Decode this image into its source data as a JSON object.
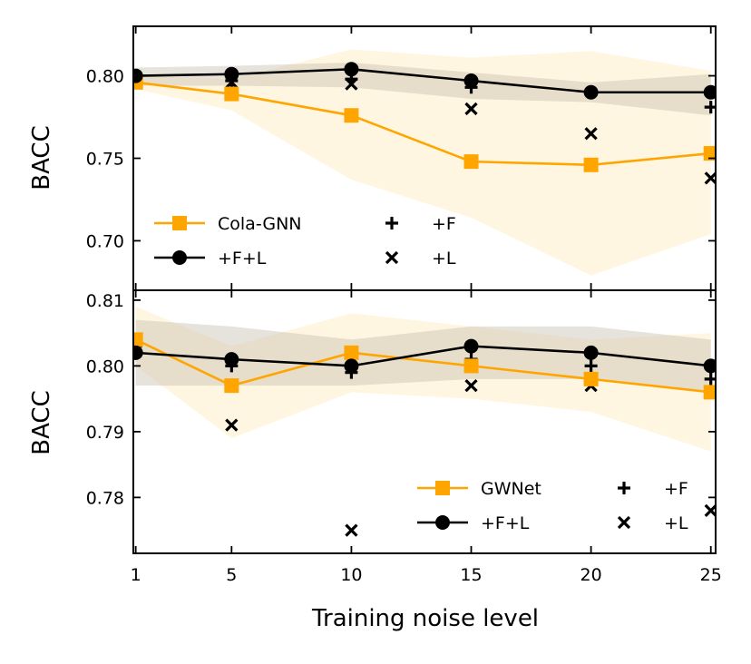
{
  "chart_data": [
    {
      "type": "line",
      "xlabel": "",
      "ylabel": "BACC",
      "x": [
        1,
        5,
        10,
        15,
        20,
        25
      ],
      "xlim": [
        0.9,
        25.2
      ],
      "ylim": [
        0.67,
        0.83
      ],
      "yticks": [
        0.7,
        0.75,
        0.8
      ],
      "ytick_labels": [
        "0.70",
        "0.75",
        "0.80"
      ],
      "xtick_labels": [
        "1",
        "5",
        "10",
        "15",
        "20",
        "25"
      ],
      "show_xtick_labels": false,
      "legend_placement": "lower-left",
      "legend": [
        {
          "label": "Cola-GNN",
          "marker": "square",
          "color": "#FFA500"
        },
        {
          "label": "+F+L",
          "marker": "circle",
          "color": "#000000"
        },
        {
          "label": "+F",
          "marker": "plus",
          "color": "#000000"
        },
        {
          "label": "+L",
          "marker": "x",
          "color": "#000000"
        }
      ],
      "series": [
        {
          "name": "Cola-GNN",
          "kind": "line",
          "marker": "square",
          "color": "#FFA500",
          "values": [
            0.796,
            0.789,
            0.776,
            0.748,
            0.746,
            0.753
          ],
          "band_low": [
            0.792,
            0.779,
            0.737,
            0.714,
            0.679,
            0.704
          ],
          "band_high": [
            0.8,
            0.798,
            0.816,
            0.811,
            0.815,
            0.803
          ]
        },
        {
          "name": "+F+L",
          "kind": "line",
          "marker": "circle",
          "color": "#000000",
          "values": [
            0.8,
            0.801,
            0.804,
            0.797,
            0.79,
            0.79
          ],
          "band_low": [
            0.794,
            0.794,
            0.793,
            0.786,
            0.784,
            0.776
          ],
          "band_high": [
            0.805,
            0.806,
            0.808,
            0.802,
            0.796,
            0.801
          ]
        },
        {
          "name": "+F",
          "kind": "scatter",
          "marker": "plus",
          "color": "#000000",
          "values": [
            0.797,
            0.797,
            0.798,
            0.793,
            0.79,
            0.781
          ]
        },
        {
          "name": "+L",
          "kind": "scatter",
          "marker": "x",
          "color": "#000000",
          "values": [
            0.796,
            0.796,
            0.795,
            0.78,
            0.765,
            0.738
          ]
        }
      ]
    },
    {
      "type": "line",
      "xlabel": "Training noise level",
      "ylabel": "BACC",
      "x": [
        1,
        5,
        10,
        15,
        20,
        25
      ],
      "xlim": [
        0.9,
        25.2
      ],
      "ylim": [
        0.7715,
        0.8115
      ],
      "yticks": [
        0.78,
        0.79,
        0.8,
        0.81
      ],
      "ytick_labels": [
        "0.78",
        "0.79",
        "0.80",
        "0.81"
      ],
      "xtick_labels": [
        "1",
        "5",
        "10",
        "15",
        "20",
        "25"
      ],
      "show_xtick_labels": true,
      "legend_placement": "lower-right",
      "legend": [
        {
          "label": "GWNet",
          "marker": "square",
          "color": "#FFA500"
        },
        {
          "label": "+F+L",
          "marker": "circle",
          "color": "#000000"
        },
        {
          "label": "+F",
          "marker": "plus",
          "color": "#000000"
        },
        {
          "label": "+L",
          "marker": "x",
          "color": "#000000"
        }
      ],
      "series": [
        {
          "name": "GWNet",
          "kind": "line",
          "marker": "square",
          "color": "#FFA500",
          "values": [
            0.804,
            0.797,
            0.802,
            0.8,
            0.798,
            0.796
          ],
          "band_low": [
            0.8,
            0.789,
            0.796,
            0.795,
            0.793,
            0.787
          ],
          "band_high": [
            0.809,
            0.803,
            0.808,
            0.806,
            0.804,
            0.805
          ]
        },
        {
          "name": "+F+L",
          "kind": "line",
          "marker": "circle",
          "color": "#000000",
          "values": [
            0.802,
            0.801,
            0.8,
            0.803,
            0.802,
            0.8
          ],
          "band_low": [
            0.797,
            0.797,
            0.797,
            0.798,
            0.798,
            0.796
          ],
          "band_high": [
            0.807,
            0.806,
            0.804,
            0.806,
            0.806,
            0.804
          ]
        },
        {
          "name": "+F",
          "kind": "scatter",
          "marker": "plus",
          "color": "#000000",
          "values": [
            0.803,
            0.8,
            0.799,
            0.801,
            0.8,
            0.798
          ]
        },
        {
          "name": "+L",
          "kind": "scatter",
          "marker": "x",
          "color": "#000000",
          "values": [
            0.803,
            0.791,
            0.775,
            0.797,
            0.797,
            0.778
          ]
        }
      ]
    }
  ]
}
